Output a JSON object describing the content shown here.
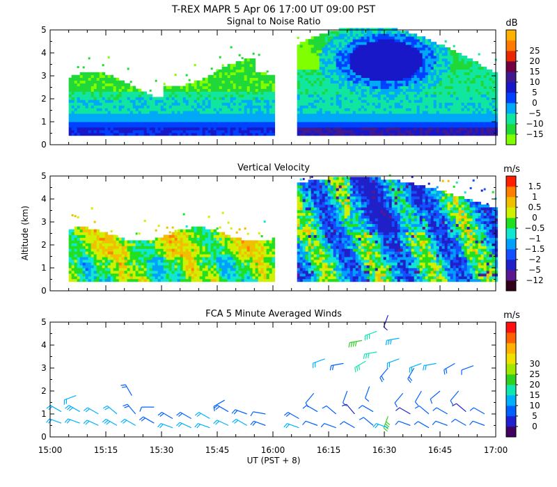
{
  "title": "T-REX  MAPR  5 Apr 06  17:00 UT  09:00  PST",
  "xlabel": "UT  (PST + 8)",
  "ylabel": "Altitude (km)",
  "colors": {
    "background": "#ffffff",
    "axis": "#000000",
    "missing": "#ffffff"
  },
  "chart_data": [
    {
      "type": "heatmap",
      "title": "Signal to Noise Ratio",
      "units": "dB",
      "x_range_min": [
        0,
        120
      ],
      "ylim": [
        0,
        5
      ],
      "y_ticks": [
        "0",
        "1",
        "2",
        "3",
        "4",
        "5"
      ],
      "data_gap_min": [
        60,
        66
      ],
      "colorbar": {
        "labels": [
          "25",
          "20",
          "15",
          "10",
          "5",
          "0",
          "−5",
          "−10",
          "−15"
        ],
        "levels": [
          -15,
          -10,
          -5,
          0,
          5,
          10,
          15,
          20,
          25
        ],
        "colors": [
          "#80ff00",
          "#20d838",
          "#10e6a0",
          "#00a8f8",
          "#0040ff",
          "#1818c8",
          "#401890",
          "#700040",
          "#e82800",
          "#ff7a00",
          "#ffb000"
        ]
      }
    },
    {
      "type": "heatmap",
      "title": "Vertical Velocity",
      "units": "m/s",
      "x_range_min": [
        0,
        120
      ],
      "ylim": [
        0,
        5
      ],
      "y_ticks": [
        "0",
        "1",
        "2",
        "3",
        "4",
        "5"
      ],
      "data_gap_min": [
        60,
        66
      ],
      "colorbar": {
        "labels": [
          "1.5",
          "1",
          "0.5",
          "0",
          "−0.5",
          "−1",
          "−1.5",
          "−2",
          "−5",
          "−12"
        ],
        "levels": [
          -12,
          -5,
          -2,
          -1.5,
          -1,
          -0.5,
          0,
          0.5,
          1,
          1.5
        ],
        "colors": [
          "#300018",
          "#5a1890",
          "#2020c8",
          "#1450ff",
          "#00a0ff",
          "#10e6d0",
          "#20e020",
          "#d0f000",
          "#f0c000",
          "#ff8000",
          "#ff2000"
        ]
      }
    },
    {
      "type": "scatter",
      "subtype": "wind_barbs",
      "title": "FCA 5 Minute Averaged Winds",
      "units": "m/s",
      "x_range_min": [
        0,
        120
      ],
      "ylim": [
        0,
        5
      ],
      "y_ticks": [
        "0",
        "1",
        "2",
        "3",
        "4",
        "5"
      ],
      "colorbar": {
        "labels": [
          "30",
          "25",
          "20",
          "15",
          "10",
          "5",
          "0"
        ],
        "levels": [
          0,
          5,
          10,
          15,
          20,
          25,
          30
        ],
        "colors": [
          "#400060",
          "#2020d0",
          "#0060ff",
          "#00b0ff",
          "#10e6b0",
          "#30d020",
          "#a0e800",
          "#f0e000",
          "#ffb000",
          "#ff6000",
          "#ff1010"
        ]
      },
      "barbs": [
        {
          "t": 3,
          "alt": 1.1,
          "spd": 12,
          "dir": 300
        },
        {
          "t": 3,
          "alt": 0.6,
          "spd": 10,
          "dir": 290
        },
        {
          "t": 7,
          "alt": 1.8,
          "spd": 10,
          "dir": 250
        },
        {
          "t": 8,
          "alt": 1.1,
          "spd": 14,
          "dir": 300
        },
        {
          "t": 8,
          "alt": 0.6,
          "spd": 12,
          "dir": 290
        },
        {
          "t": 13,
          "alt": 1.0,
          "spd": 11,
          "dir": 300
        },
        {
          "t": 13,
          "alt": 0.5,
          "spd": 12,
          "dir": 295
        },
        {
          "t": 18,
          "alt": 1.0,
          "spd": 10,
          "dir": 310
        },
        {
          "t": 18,
          "alt": 0.5,
          "spd": 13,
          "dir": 300
        },
        {
          "t": 22,
          "alt": 1.8,
          "spd": 8,
          "dir": 330
        },
        {
          "t": 23,
          "alt": 1.0,
          "spd": 9,
          "dir": 320
        },
        {
          "t": 23,
          "alt": 0.5,
          "spd": 11,
          "dir": 300
        },
        {
          "t": 28,
          "alt": 1.3,
          "spd": 6,
          "dir": 270
        },
        {
          "t": 28,
          "alt": 0.6,
          "spd": 9,
          "dir": 300
        },
        {
          "t": 33,
          "alt": 0.8,
          "spd": 8,
          "dir": 300
        },
        {
          "t": 33,
          "alt": 0.4,
          "spd": 10,
          "dir": 290
        },
        {
          "t": 38,
          "alt": 0.8,
          "spd": 9,
          "dir": 300
        },
        {
          "t": 38,
          "alt": 0.4,
          "spd": 12,
          "dir": 295
        },
        {
          "t": 43,
          "alt": 0.8,
          "spd": 10,
          "dir": 300
        },
        {
          "t": 43,
          "alt": 0.4,
          "spd": 11,
          "dir": 290
        },
        {
          "t": 47,
          "alt": 1.6,
          "spd": 7,
          "dir": 240
        },
        {
          "t": 48,
          "alt": 1.1,
          "spd": 9,
          "dir": 300
        },
        {
          "t": 48,
          "alt": 0.5,
          "spd": 10,
          "dir": 295
        },
        {
          "t": 53,
          "alt": 1.0,
          "spd": 8,
          "dir": 290
        },
        {
          "t": 53,
          "alt": 0.5,
          "spd": 11,
          "dir": 300
        },
        {
          "t": 58,
          "alt": 1.0,
          "spd": 7,
          "dir": 280
        },
        {
          "t": 58,
          "alt": 0.5,
          "spd": 8,
          "dir": 290
        },
        {
          "t": 67,
          "alt": 0.8,
          "spd": 9,
          "dir": 300
        },
        {
          "t": 67,
          "alt": 0.4,
          "spd": 10,
          "dir": 290
        },
        {
          "t": 71,
          "alt": 1.9,
          "spd": 6,
          "dir": 220
        },
        {
          "t": 72,
          "alt": 1.1,
          "spd": 7,
          "dir": 300
        },
        {
          "t": 72,
          "alt": 0.5,
          "spd": 6,
          "dir": 290
        },
        {
          "t": 74,
          "alt": 3.4,
          "spd": 11,
          "dir": 250
        },
        {
          "t": 77,
          "alt": 1.0,
          "spd": 6,
          "dir": 310
        },
        {
          "t": 77,
          "alt": 0.4,
          "spd": 5,
          "dir": 290
        },
        {
          "t": 79,
          "alt": 3.2,
          "spd": 9,
          "dir": 260
        },
        {
          "t": 80,
          "alt": 2.0,
          "spd": 5,
          "dir": 200
        },
        {
          "t": 82,
          "alt": 1.0,
          "spd": 4,
          "dir": 320
        },
        {
          "t": 82,
          "alt": 0.4,
          "spd": 5,
          "dir": 300
        },
        {
          "t": 84,
          "alt": 4.2,
          "spd": 22,
          "dir": 260
        },
        {
          "t": 85,
          "alt": 3.3,
          "spd": 16,
          "dir": 240
        },
        {
          "t": 86,
          "alt": 2.2,
          "spd": 6,
          "dir": 200
        },
        {
          "t": 87,
          "alt": 1.1,
          "spd": 5,
          "dir": 300
        },
        {
          "t": 87,
          "alt": 0.5,
          "spd": 6,
          "dir": 310
        },
        {
          "t": 88,
          "alt": 4.6,
          "spd": 17,
          "dir": 250
        },
        {
          "t": 88,
          "alt": 3.7,
          "spd": 15,
          "dir": 260
        },
        {
          "t": 91,
          "alt": 5.3,
          "spd": 4,
          "dir": 200
        },
        {
          "t": 91,
          "alt": 3.0,
          "spd": 8,
          "dir": 220
        },
        {
          "t": 91,
          "alt": 0.9,
          "spd": 22,
          "dir": 200
        },
        {
          "t": 91,
          "alt": 0.4,
          "spd": 12,
          "dir": 290
        },
        {
          "t": 94,
          "alt": 4.3,
          "spd": 13,
          "dir": 260
        },
        {
          "t": 94,
          "alt": 3.4,
          "spd": 10,
          "dir": 250
        },
        {
          "t": 95,
          "alt": 1.9,
          "spd": 6,
          "dir": 220
        },
        {
          "t": 97,
          "alt": 1.0,
          "spd": 4,
          "dir": 300
        },
        {
          "t": 97,
          "alt": 0.5,
          "spd": 5,
          "dir": 290
        },
        {
          "t": 98,
          "alt": 3.0,
          "spd": 8,
          "dir": 210
        },
        {
          "t": 100,
          "alt": 3.2,
          "spd": 10,
          "dir": 250
        },
        {
          "t": 100,
          "alt": 2.0,
          "spd": 7,
          "dir": 210
        },
        {
          "t": 102,
          "alt": 1.0,
          "spd": 5,
          "dir": 310
        },
        {
          "t": 102,
          "alt": 0.4,
          "spd": 6,
          "dir": 300
        },
        {
          "t": 104,
          "alt": 3.2,
          "spd": 12,
          "dir": 260
        },
        {
          "t": 105,
          "alt": 2.0,
          "spd": 6,
          "dir": 230
        },
        {
          "t": 107,
          "alt": 1.0,
          "spd": 5,
          "dir": 300
        },
        {
          "t": 107,
          "alt": 0.5,
          "spd": 6,
          "dir": 290
        },
        {
          "t": 109,
          "alt": 3.2,
          "spd": 9,
          "dir": 240
        },
        {
          "t": 110,
          "alt": 2.0,
          "spd": 5,
          "dir": 220
        },
        {
          "t": 112,
          "alt": 1.1,
          "spd": 4,
          "dir": 310
        },
        {
          "t": 112,
          "alt": 0.5,
          "spd": 5,
          "dir": 300
        },
        {
          "t": 114,
          "alt": 3.1,
          "spd": 7,
          "dir": 250
        },
        {
          "t": 117,
          "alt": 1.0,
          "spd": 5,
          "dir": 300
        },
        {
          "t": 117,
          "alt": 0.5,
          "spd": 6,
          "dir": 290
        }
      ]
    }
  ],
  "x_ticks": [
    "15:00",
    "15:15",
    "15:30",
    "15:45",
    "16:00",
    "16:15",
    "16:30",
    "16:45",
    "17:00"
  ]
}
